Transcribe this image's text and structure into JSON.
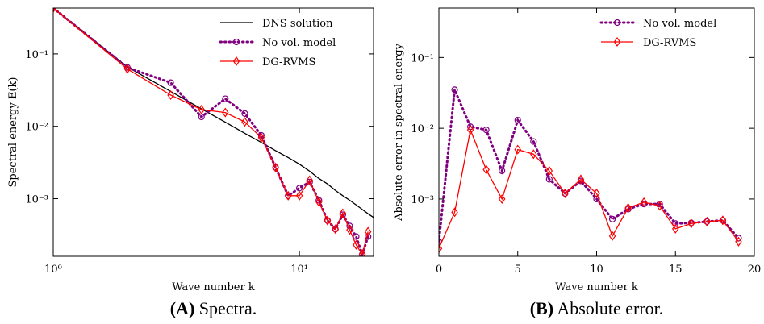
{
  "chart_data": [
    {
      "type": "line",
      "caption_label": "(A)",
      "caption": "Spectra.",
      "x_label": "Wave number k",
      "y_label": "Spectral energy E(k)",
      "xscale": "log",
      "yscale": "log",
      "xlim": [
        1,
        20
      ],
      "ylim": [
        0.00016,
        0.43
      ],
      "xticks": [
        {
          "value": 1,
          "label": "10⁰"
        },
        {
          "value": 10,
          "label": "10¹"
        }
      ],
      "yticks": [
        {
          "value": 0.001,
          "label": "10⁻³"
        },
        {
          "value": 0.01,
          "label": "10⁻²"
        },
        {
          "value": 0.1,
          "label": "10⁻¹"
        }
      ],
      "legend": "upper right",
      "series": [
        {
          "name": "DNS solution",
          "color": "#000000",
          "style": "solid",
          "marker": "none",
          "x": [
            1,
            2,
            3,
            4,
            5,
            6,
            7,
            8,
            9,
            10,
            11,
            12,
            13,
            14,
            15,
            16,
            17,
            18,
            19,
            20
          ],
          "values": [
            0.43,
            0.066,
            0.0303,
            0.0174,
            0.0114,
            0.008,
            0.006,
            0.0046,
            0.0037,
            0.003,
            0.0024,
            0.0019,
            0.0016,
            0.0013,
            0.0011,
            0.00095,
            0.00082,
            0.00071,
            0.00062,
            0.00055
          ]
        },
        {
          "name": "No vol. model",
          "color": "#800080",
          "style": "dotted",
          "marker": "circle",
          "x": [
            1,
            2,
            3,
            4,
            5,
            6,
            7,
            8,
            9,
            10,
            11,
            12,
            13,
            14,
            15,
            16,
            17,
            18,
            19
          ],
          "values": [
            0.43,
            0.065,
            0.04,
            0.0135,
            0.024,
            0.015,
            0.0075,
            0.0027,
            0.0011,
            0.0014,
            0.0017,
            0.00095,
            0.0005,
            0.00038,
            0.0006,
            0.00042,
            0.0003,
            0.00017,
            0.0003
          ]
        },
        {
          "name": "DG-RVMS",
          "color": "#ff0000",
          "style": "solid",
          "marker": "diamond",
          "x": [
            1,
            2,
            3,
            4,
            5,
            6,
            7,
            8,
            9,
            10,
            11,
            12,
            13,
            14,
            15,
            16,
            17,
            18,
            19
          ],
          "values": [
            0.43,
            0.062,
            0.027,
            0.017,
            0.0155,
            0.0115,
            0.007,
            0.0027,
            0.0011,
            0.0011,
            0.0018,
            0.0009,
            0.0005,
            0.00038,
            0.00063,
            0.00037,
            0.00023,
            0.00017,
            0.00035
          ]
        }
      ]
    },
    {
      "type": "line",
      "caption_label": "(B)",
      "caption": "Absolute error.",
      "x_label": "Wave number k",
      "y_label": "Absolute error in spectral energy",
      "xscale": "linear",
      "yscale": "log",
      "xlim": [
        0,
        20
      ],
      "ylim": [
        0.000155,
        0.5
      ],
      "xticks": [
        0,
        5,
        10,
        15,
        20
      ],
      "yticks": [
        {
          "value": 0.001,
          "label": "10⁻³"
        },
        {
          "value": 0.01,
          "label": "10⁻²"
        },
        {
          "value": 0.1,
          "label": "10⁻¹"
        }
      ],
      "legend": "upper right",
      "series": [
        {
          "name": "No vol. model",
          "color": "#800080",
          "style": "dotted",
          "marker": "circle",
          "x": [
            0,
            1,
            2,
            3,
            4,
            5,
            6,
            7,
            8,
            9,
            10,
            11,
            12,
            13,
            14,
            15,
            16,
            17,
            18,
            19
          ],
          "values": [
            0.00025,
            0.035,
            0.0105,
            0.0095,
            0.0025,
            0.013,
            0.0065,
            0.0019,
            0.0012,
            0.0018,
            0.001,
            0.00052,
            0.00072,
            0.00085,
            0.00085,
            0.00045,
            0.00046,
            0.00048,
            0.0005,
            0.00028
          ]
        },
        {
          "name": "DG-RVMS",
          "color": "#ff0000",
          "style": "solid",
          "marker": "diamond",
          "x": [
            0,
            1,
            2,
            3,
            4,
            5,
            6,
            7,
            8,
            9,
            10,
            11,
            12,
            13,
            14,
            15,
            16,
            17,
            18,
            19
          ],
          "values": [
            0.0002,
            0.00065,
            0.0095,
            0.0026,
            0.001,
            0.005,
            0.0043,
            0.0025,
            0.0012,
            0.0019,
            0.0012,
            0.0003,
            0.00075,
            0.0009,
            0.0008,
            0.00038,
            0.00045,
            0.00048,
            0.0005,
            0.00025
          ]
        }
      ]
    }
  ]
}
